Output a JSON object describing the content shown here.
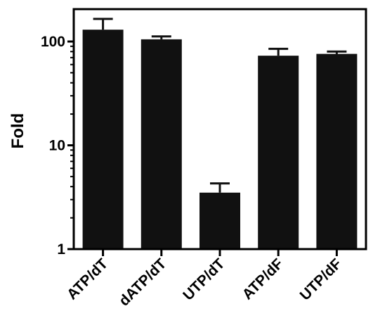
{
  "chart_data": {
    "type": "bar",
    "title": "",
    "xlabel": "",
    "ylabel": "Fold",
    "yscale": "log",
    "ylim": [
      1,
      200
    ],
    "yticks": [
      {
        "value": 1,
        "label": "1"
      },
      {
        "value": 10,
        "label": "10"
      },
      {
        "value": 100,
        "label": "100"
      }
    ],
    "grid": false,
    "legend": "none",
    "categories": [
      "ATP/dT",
      "dATP/dT",
      "UTP/dT",
      "ATP/dF",
      "UTP/dF"
    ],
    "values": [
      130,
      105,
      3.5,
      73,
      76
    ],
    "error_upper": [
      165,
      112,
      4.3,
      85,
      80
    ],
    "bar_color": "#111111",
    "axis_color": "#000000"
  }
}
